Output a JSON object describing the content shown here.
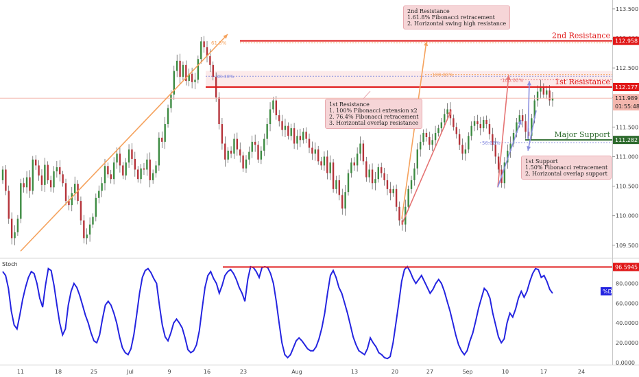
{
  "chart_data": {
    "type": "candlestick",
    "x_ticks": [
      "11",
      "18",
      "25",
      "Jul",
      "9",
      "16",
      "23",
      "Aug",
      "13",
      "20",
      "27",
      "Sep",
      "10",
      "17",
      "24"
    ],
    "price_axis": {
      "ticks": [
        109.5,
        110.0,
        110.5,
        111.0,
        111.5,
        112.0,
        112.5,
        113.0,
        113.5
      ],
      "tick_labels": [
        "109.500",
        "110.000",
        "110.500",
        "111.000",
        "111.500",
        "112.000",
        "112.500",
        "113.000",
        "113.500"
      ],
      "range": [
        109.3,
        113.65
      ]
    },
    "price_badges": [
      {
        "value": 112.958,
        "label": "112.958",
        "color": "#e01818"
      },
      {
        "value": 112.177,
        "label": "112.177",
        "color": "#e01818"
      },
      {
        "value": 111.989,
        "label": "111.989",
        "sub": "01:55:48",
        "color": "#f4b7ae"
      },
      {
        "value": 111.282,
        "label": "111.282",
        "color": "#2e6b2e"
      }
    ],
    "levels": [
      {
        "name": "2nd Resistance",
        "value": 112.958,
        "color": "#e01818"
      },
      {
        "name": "1st Resistance",
        "value": 112.177,
        "color": "#e01818"
      },
      {
        "name": "Major Support",
        "value": 111.282,
        "color": "#2e6b2e"
      }
    ],
    "fib_labels": [
      "61.8%",
      "38.40%",
      "100.00%",
      "100.00%",
      "50.00%"
    ],
    "closes": [
      110.78,
      110.42,
      109.95,
      109.62,
      109.72,
      109.95,
      110.55,
      110.48,
      110.65,
      110.42,
      110.95,
      110.85,
      110.68,
      110.52,
      110.86,
      110.6,
      110.48,
      110.75,
      110.82,
      110.7,
      110.55,
      110.25,
      110.18,
      110.38,
      110.54,
      110.25,
      109.92,
      109.62,
      109.68,
      109.85,
      109.98,
      110.3,
      110.42,
      110.55,
      110.84,
      110.7,
      110.62,
      110.9,
      111.05,
      110.85,
      110.68,
      110.9,
      111.12,
      110.96,
      110.78,
      110.62,
      110.8,
      110.78,
      110.95,
      110.6,
      110.72,
      110.85,
      111.32,
      111.25,
      111.55,
      111.82,
      112.05,
      112.45,
      112.62,
      112.35,
      112.55,
      112.28,
      112.4,
      112.26,
      112.3,
      112.65,
      112.95,
      112.85,
      112.7,
      112.55,
      112.35,
      112.0,
      111.55,
      111.22,
      110.95,
      111.1,
      111.05,
      111.3,
      111.12,
      111.02,
      110.8,
      110.95,
      111.08,
      111.25,
      111.2,
      110.95,
      111.1,
      111.3,
      111.55,
      111.8,
      111.95,
      111.7,
      111.6,
      111.45,
      111.52,
      111.35,
      111.48,
      111.22,
      111.35,
      111.28,
      111.42,
      111.3,
      111.15,
      111.05,
      111.12,
      110.92,
      110.85,
      111.0,
      110.72,
      110.9,
      110.45,
      110.6,
      110.35,
      110.12,
      110.4,
      110.72,
      110.9,
      110.85,
      111.05,
      111.22,
      110.92,
      110.65,
      110.78,
      110.55,
      110.62,
      110.82,
      110.72,
      110.6,
      110.45,
      110.38,
      110.45,
      110.15,
      109.92,
      109.85,
      110.15,
      110.45,
      110.6,
      110.8,
      111.12,
      111.25,
      111.4,
      111.33,
      111.2,
      111.28,
      111.4,
      111.48,
      111.58,
      111.72,
      111.8,
      111.65,
      111.5,
      111.38,
      111.2,
      111.05,
      111.12,
      111.35,
      111.52,
      111.6,
      111.55,
      111.48,
      111.62,
      111.55,
      111.38,
      111.2,
      111.0,
      110.78,
      110.55,
      110.9,
      111.1,
      111.22,
      111.4,
      111.58,
      111.7,
      111.6,
      111.42,
      111.35,
      111.65,
      111.95,
      112.1,
      112.18,
      112.05,
      112.12,
      111.95,
      111.99
    ],
    "stoch_axis": {
      "ticks": [
        0,
        20,
        40,
        60,
        80
      ],
      "tick_labels": [
        "0.0000",
        "20.0000",
        "40.0000",
        "60.0000",
        "80.0000"
      ],
      "range": [
        0,
        100
      ]
    },
    "stoch_d": [
      92,
      88,
      75,
      52,
      38,
      34,
      48,
      64,
      76,
      86,
      92,
      90,
      80,
      65,
      56,
      78,
      95,
      93,
      78,
      58,
      40,
      28,
      34,
      58,
      72,
      80,
      76,
      68,
      58,
      48,
      40,
      30,
      22,
      20,
      28,
      44,
      58,
      62,
      58,
      50,
      40,
      26,
      15,
      10,
      8,
      14,
      28,
      48,
      70,
      86,
      93,
      95,
      91,
      85,
      80,
      58,
      38,
      26,
      22,
      30,
      40,
      44,
      40,
      35,
      25,
      13,
      10,
      12,
      18,
      32,
      55,
      76,
      88,
      92,
      85,
      80,
      70,
      78,
      88,
      92,
      94,
      90,
      84,
      76,
      70,
      62,
      84,
      97,
      96,
      92,
      86,
      96,
      97,
      96,
      90,
      80,
      62,
      40,
      20,
      8,
      5,
      8,
      15,
      22,
      25,
      22,
      18,
      14,
      12,
      12,
      16,
      24,
      35,
      50,
      70,
      88,
      93,
      86,
      76,
      70,
      60,
      50,
      38,
      26,
      18,
      12,
      10,
      8,
      14,
      25,
      20,
      16,
      10,
      8,
      5,
      4,
      6,
      20,
      40,
      60,
      82,
      94,
      97,
      92,
      85,
      80,
      84,
      88,
      82,
      76,
      70,
      74,
      80,
      84,
      80,
      72,
      62,
      52,
      40,
      28,
      18,
      12,
      8,
      12,
      22,
      30,
      42,
      55,
      65,
      75,
      72,
      65,
      50,
      38,
      26,
      20,
      24,
      40,
      50,
      46,
      54,
      65,
      72,
      66,
      72,
      82,
      90,
      95,
      94,
      86,
      88,
      82,
      74,
      70
    ],
    "stoch_level": {
      "value": 96.5945,
      "label": "96.5945",
      "color": "#e01818"
    },
    "stoch_badge": {
      "label": "%D",
      "color": "#2424e0"
    },
    "stoch_title": "Stoch"
  },
  "notes": {
    "second_resistance": {
      "title": "2nd Resistance",
      "lines": [
        "1.61.8% Fibonacci retracement",
        "2. Horizontal swing high resistance"
      ]
    },
    "first_resistance": {
      "title": "1st Resistance",
      "lines": [
        "1. 100% Fibonacci extension x2",
        "2. 76.4% Fibonacci retracement",
        "3. Horizontal overlap resistance"
      ]
    },
    "first_support": {
      "title": "1st Support",
      "lines": [
        "1.50% Fibonacci retracement",
        "2. Horizontal overlap support"
      ]
    }
  },
  "colors": {
    "up": "#3d8b42",
    "down": "#b5333a",
    "resistance": "#e01818",
    "support": "#2e6b2e",
    "stoch": "#2424e0",
    "arrow_orange": "#f5a25d",
    "arrow_red": "#e57373",
    "arrow_blue": "#8a8fe0"
  }
}
